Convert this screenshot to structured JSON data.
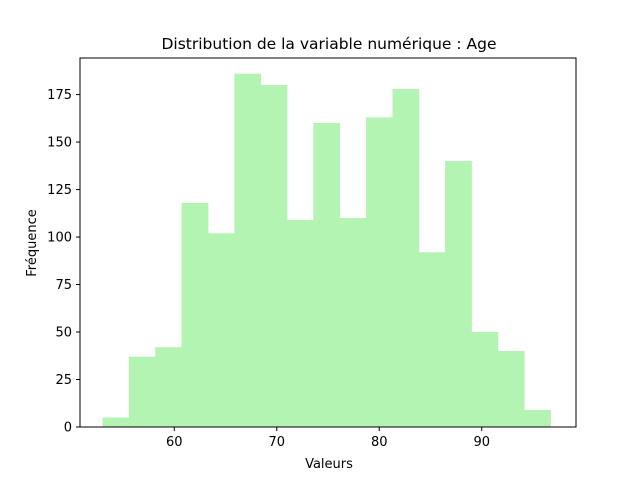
{
  "chart_data": {
    "type": "bar",
    "title": "Distribution de la variable numérique : Age",
    "xlabel": "Valeurs",
    "ylabel": "Fréquence",
    "xlim": [
      50.8,
      99.2
    ],
    "ylim": [
      0,
      194.25
    ],
    "xticks": [
      60,
      70,
      80,
      90
    ],
    "yticks": [
      0,
      25,
      50,
      75,
      100,
      125,
      150,
      175
    ],
    "bar_color": "#b3f4b3",
    "grid": false,
    "legend": "none",
    "bins": [
      {
        "x0": 53.0,
        "x1": 55.57,
        "value": 5
      },
      {
        "x0": 55.57,
        "x1": 58.14,
        "value": 37
      },
      {
        "x0": 58.14,
        "x1": 60.71,
        "value": 42
      },
      {
        "x0": 60.71,
        "x1": 63.29,
        "value": 118
      },
      {
        "x0": 63.29,
        "x1": 65.86,
        "value": 102
      },
      {
        "x0": 65.86,
        "x1": 68.43,
        "value": 186
      },
      {
        "x0": 68.43,
        "x1": 71.0,
        "value": 180
      },
      {
        "x0": 71.0,
        "x1": 73.57,
        "value": 109
      },
      {
        "x0": 73.57,
        "x1": 76.14,
        "value": 160
      },
      {
        "x0": 76.14,
        "x1": 78.71,
        "value": 110
      },
      {
        "x0": 78.71,
        "x1": 81.29,
        "value": 163
      },
      {
        "x0": 81.29,
        "x1": 83.86,
        "value": 178
      },
      {
        "x0": 83.86,
        "x1": 86.43,
        "value": 92
      },
      {
        "x0": 86.43,
        "x1": 89.0,
        "value": 140
      },
      {
        "x0": 89.0,
        "x1": 91.57,
        "value": 50
      },
      {
        "x0": 91.57,
        "x1": 94.14,
        "value": 40
      },
      {
        "x0": 94.14,
        "x1": 96.71,
        "value": 9
      }
    ]
  }
}
